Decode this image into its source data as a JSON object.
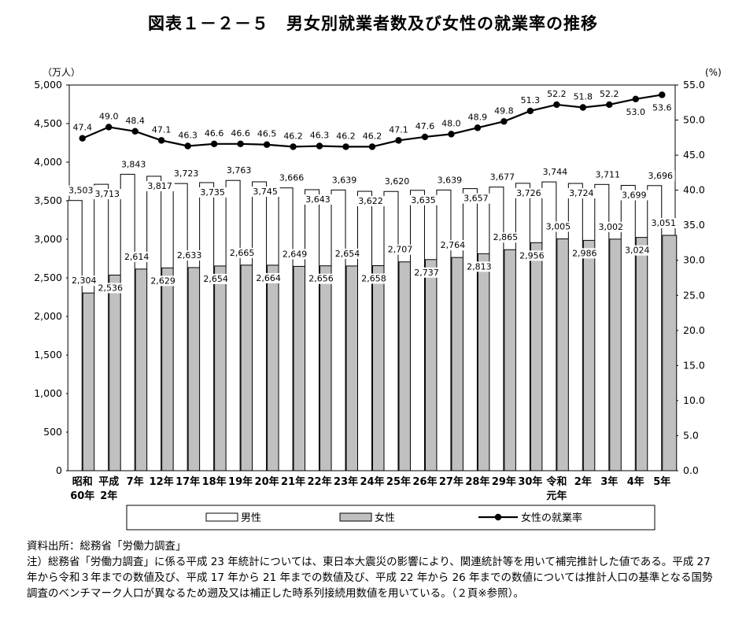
{
  "title": "図表１－２－５　男女別就業者数及び女性の就業率の推移",
  "chart_data": {
    "type": "bar",
    "title": "図表１－２－５　男女別就業者数及び女性の就業率の推移",
    "categories": [
      [
        "昭和",
        "60年"
      ],
      [
        "平成",
        "2年"
      ],
      [
        "7年"
      ],
      [
        "12年"
      ],
      [
        "17年"
      ],
      [
        "18年"
      ],
      [
        "19年"
      ],
      [
        "20年"
      ],
      [
        "21年"
      ],
      [
        "22年"
      ],
      [
        "23年"
      ],
      [
        "24年"
      ],
      [
        "25年"
      ],
      [
        "26年"
      ],
      [
        "27年"
      ],
      [
        "28年"
      ],
      [
        "29年"
      ],
      [
        "30年"
      ],
      [
        "令和",
        "元年"
      ],
      [
        "2年"
      ],
      [
        "3年"
      ],
      [
        "4年"
      ],
      [
        "5年"
      ]
    ],
    "series": [
      {
        "name": "男性",
        "kind": "bar",
        "axis": "left",
        "color": "#ffffff",
        "values": [
          3503,
          3713,
          3843,
          3817,
          3723,
          3735,
          3763,
          3745,
          3666,
          3643,
          3639,
          3622,
          3620,
          3635,
          3639,
          3657,
          3677,
          3726,
          3744,
          3724,
          3711,
          3699,
          3696
        ],
        "labels": [
          "3,503",
          "3,713",
          "3,843",
          "3,817",
          "3,723",
          "3,735",
          "3,763",
          "3,745",
          "3,666",
          "3,643",
          "3,639",
          "3,622",
          "3,620",
          "3,635",
          "3,639",
          "3,657",
          "3,677",
          "3,726",
          "3,744",
          "3,724",
          "3,711",
          "3,699",
          "3,696"
        ]
      },
      {
        "name": "女性",
        "kind": "bar",
        "axis": "left",
        "color": "#c0c0c0",
        "values": [
          2304,
          2536,
          2614,
          2629,
          2633,
          2654,
          2665,
          2664,
          2649,
          2656,
          2654,
          2658,
          2707,
          2737,
          2764,
          2813,
          2865,
          2956,
          3005,
          2986,
          3002,
          3024,
          3051
        ],
        "labels": [
          "2,304",
          "2,536",
          "2,614",
          "2,629",
          "2,633",
          "2,654",
          "2,665",
          "2,664",
          "2,649",
          "2,656",
          "2,654",
          "2,658",
          "2,707",
          "2,737",
          "2,764",
          "2,813",
          "2,865",
          "2,956",
          "3,005",
          "2,986",
          "3,002",
          "3,024",
          "3,051"
        ]
      },
      {
        "name": "女性の就業率",
        "kind": "line",
        "axis": "right",
        "color": "#000000",
        "values": [
          47.4,
          49.0,
          48.4,
          47.1,
          46.3,
          46.6,
          46.6,
          46.5,
          46.2,
          46.3,
          46.2,
          46.2,
          47.1,
          47.6,
          48.0,
          48.9,
          49.8,
          51.3,
          52.2,
          51.8,
          52.2,
          53.0,
          53.6
        ],
        "labels": [
          "47.4",
          "49.0",
          "48.4",
          "47.1",
          "46.3",
          "46.6",
          "46.6",
          "46.5",
          "46.2",
          "46.3",
          "46.2",
          "46.2",
          "47.1",
          "47.6",
          "48.0",
          "48.9",
          "49.8",
          "51.3",
          "52.2",
          "51.8",
          "52.2",
          "53.0",
          "53.6"
        ]
      }
    ],
    "y_left": {
      "label": "（万人）",
      "range": [
        0,
        5000
      ],
      "ticks": [
        "0",
        "500",
        "1,000",
        "1,500",
        "2,000",
        "2,500",
        "3,000",
        "3,500",
        "4,000",
        "4,500",
        "5,000"
      ]
    },
    "y_right": {
      "label": "(%)",
      "range": [
        0,
        55
      ],
      "ticks": [
        "0.0",
        "5.0",
        "10.0",
        "15.0",
        "20.0",
        "25.0",
        "30.0",
        "35.0",
        "40.0",
        "45.0",
        "50.0",
        "55.0"
      ]
    },
    "grid": false,
    "legend_position": "bottom",
    "legend": [
      "男性",
      "女性",
      "女性の就業率"
    ]
  },
  "notes": {
    "source": "資料出所：総務省「労働力調査」",
    "note": "注）総務省「労働力調査」に係る平成 23 年統計については、東日本大震災の影響により、関連統計等を用いて補完推計した値である。平成 27 年から令和３年までの数値及び、平成 17 年から 21 年までの数値及び、平成 22 年から 26 年までの数値については推計人口の基準となる国勢調査のベンチマーク人口が異なるため遡及又は補正した時系列接続用数値を用いている。（２頁※参照）。"
  }
}
